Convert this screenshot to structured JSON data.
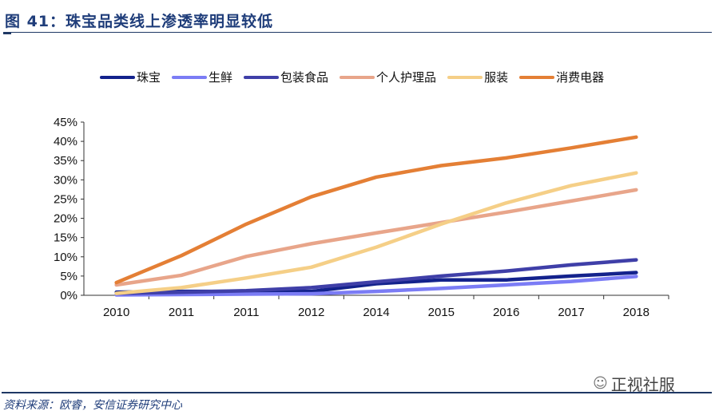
{
  "title": "图 41：珠宝品类线上渗透率明显较低",
  "source": "资料来源：欧睿，安信证券研究中心",
  "watermark": "正视社服",
  "chart_data": {
    "type": "line",
    "title": "图 41：珠宝品类线上渗透率明显较低",
    "categories": [
      "2010",
      "2011",
      "2011",
      "2012",
      "2014",
      "2015",
      "2016",
      "2017",
      "2018"
    ],
    "ylim": [
      0,
      45
    ],
    "yticks": [
      "0%",
      "5%",
      "10%",
      "15%",
      "20%",
      "25%",
      "30%",
      "35%",
      "40%",
      "45%"
    ],
    "legend_position": "top",
    "series": [
      {
        "name": "珠宝",
        "color": "#13228c",
        "values": [
          0.8,
          1.0,
          1.0,
          1.0,
          3.0,
          4.0,
          4.0,
          5.0,
          5.9
        ]
      },
      {
        "name": "生鲜",
        "color": "#7b7cf5",
        "values": [
          0.1,
          0.2,
          0.3,
          0.4,
          1.0,
          1.8,
          2.7,
          3.6,
          4.9
        ]
      },
      {
        "name": "包装食品",
        "color": "#3f3fa8",
        "values": [
          0.5,
          0.8,
          1.2,
          2.0,
          3.5,
          5.0,
          6.3,
          7.9,
          9.2
        ]
      },
      {
        "name": "个人护理品",
        "color": "#e8a58a",
        "values": [
          2.7,
          5.2,
          10.1,
          13.4,
          16.2,
          18.9,
          21.6,
          24.5,
          27.4
        ]
      },
      {
        "name": "服装",
        "color": "#f5cf87",
        "values": [
          0.5,
          2.0,
          4.5,
          7.3,
          12.5,
          18.5,
          24.0,
          28.5,
          31.8
        ]
      },
      {
        "name": "消费电器",
        "color": "#e47f35",
        "values": [
          3.3,
          10.3,
          18.5,
          25.6,
          30.7,
          33.7,
          35.7,
          38.3,
          41.1
        ]
      }
    ]
  }
}
